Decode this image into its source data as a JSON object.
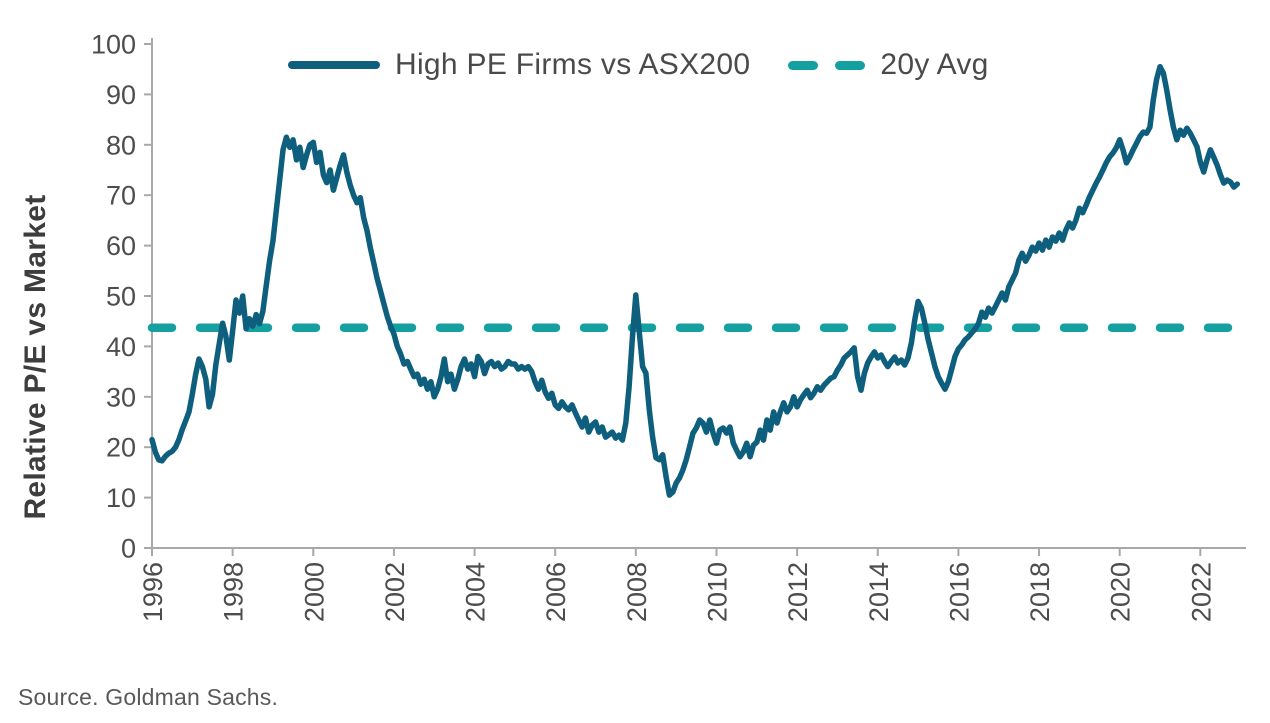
{
  "legend": {
    "series1_label": "High PE Firms vs ASX200",
    "series2_label": "20y Avg"
  },
  "y_axis": {
    "title": "Relative P/E vs Market"
  },
  "source": "Source. Goldman Sachs.",
  "colors": {
    "series_line": "#0E5F7E",
    "avg_line": "#14A0A0",
    "axis": "#A8A8A8",
    "tick_text": "#4D4D4D",
    "axis_title_text": "#3D3D3D",
    "source_text": "#595959"
  },
  "chart_data": {
    "type": "line",
    "title": "",
    "xlabel": "",
    "ylabel": "Relative P/E vs Market",
    "ylim": [
      0,
      100
    ],
    "grid": false,
    "legend_position": "top",
    "y_ticks": [
      0,
      10,
      20,
      30,
      40,
      50,
      60,
      70,
      80,
      90,
      100
    ],
    "x_tick_labels": [
      "1996",
      "1998",
      "2000",
      "2002",
      "2004",
      "2006",
      "2008",
      "2010",
      "2012",
      "2014",
      "2016",
      "2018",
      "2020",
      "2022"
    ],
    "x_start_year": 1996,
    "x_end_year": 2022,
    "series": [
      {
        "name": "High PE Firms vs ASX200",
        "frequency": "monthly",
        "start_year": 1996,
        "values": [
          21.5,
          19.0,
          17.5,
          17.3,
          18.2,
          18.8,
          19.2,
          20.0,
          21.5,
          23.5,
          25.2,
          27.0,
          30.5,
          34.5,
          37.5,
          36.0,
          33.5,
          28.0,
          30.5,
          36.3,
          40.5,
          44.6,
          42.0,
          37.3,
          43.0,
          49.2,
          46.6,
          50.0,
          43.5,
          45.5,
          44.0,
          46.3,
          44.5,
          47.0,
          52.0,
          57.0,
          61.0,
          67.0,
          73.0,
          79.0,
          81.5,
          79.5,
          81.0,
          77.0,
          79.5,
          75.5,
          78.0,
          80.0,
          80.5,
          76.5,
          78.5,
          74.0,
          72.5,
          75.0,
          71.0,
          73.5,
          76.0,
          78.0,
          74.5,
          72.0,
          70.0,
          68.5,
          69.5,
          65.5,
          63.0,
          59.5,
          56.5,
          53.5,
          51.0,
          48.5,
          46.0,
          44.0,
          42.5,
          40.0,
          38.5,
          36.5,
          37.0,
          35.5,
          34.0,
          34.5,
          32.5,
          33.5,
          31.5,
          33.0,
          30.0,
          31.5,
          34.0,
          37.5,
          33.0,
          34.5,
          31.5,
          33.5,
          36.0,
          37.5,
          35.5,
          36.5,
          34.0,
          38.0,
          37.0,
          34.6,
          36.5,
          37.0,
          36.0,
          36.7,
          35.5,
          36.0,
          37.0,
          36.5,
          36.5,
          35.5,
          36.0,
          35.5,
          36.0,
          35.0,
          33.0,
          31.5,
          33.3,
          31.0,
          29.7,
          30.7,
          28.4,
          27.7,
          29.0,
          28.0,
          27.4,
          28.4,
          26.8,
          25.4,
          24.0,
          25.8,
          23.0,
          24.4,
          25.0,
          23.0,
          24.0,
          22.0,
          22.5,
          23.0,
          21.8,
          22.4,
          21.4,
          24.8,
          32.0,
          42.0,
          50.2,
          43.0,
          36.0,
          34.7,
          27.4,
          22.0,
          17.9,
          17.5,
          18.5,
          14.1,
          10.5,
          11.1,
          12.9,
          13.9,
          15.5,
          17.5,
          20.1,
          22.8,
          23.8,
          25.4,
          24.8,
          23.0,
          25.4,
          22.8,
          20.8,
          23.4,
          23.8,
          22.8,
          24.0,
          20.8,
          19.4,
          18.1,
          19.1,
          20.8,
          18.1,
          20.4,
          21.0,
          23.4,
          21.4,
          25.4,
          23.4,
          27.0,
          24.8,
          27.0,
          28.8,
          27.0,
          28.0,
          30.0,
          28.0,
          29.4,
          30.4,
          31.3,
          29.8,
          30.7,
          32.0,
          31.3,
          32.3,
          33.0,
          33.7,
          34.0,
          35.3,
          36.3,
          37.7,
          38.3,
          38.9,
          39.7,
          34.0,
          31.3,
          34.6,
          36.7,
          37.9,
          38.9,
          37.7,
          38.3,
          37.0,
          36.0,
          37.0,
          37.9,
          36.7,
          37.3,
          36.3,
          37.7,
          40.7,
          45.2,
          48.9,
          47.6,
          44.6,
          41.3,
          38.7,
          36.0,
          34.0,
          32.7,
          31.5,
          33.0,
          35.5,
          38.0,
          39.5,
          40.3,
          41.3,
          41.9,
          42.7,
          43.5,
          44.6,
          46.8,
          45.8,
          47.6,
          46.6,
          47.9,
          49.2,
          50.6,
          49.2,
          51.8,
          53.2,
          54.5,
          57.1,
          58.5,
          56.9,
          58.1,
          59.7,
          58.9,
          60.5,
          59.1,
          61.1,
          59.7,
          61.7,
          60.9,
          62.5,
          61.1,
          63.1,
          64.5,
          63.5,
          65.1,
          67.4,
          66.5,
          68.0,
          69.6,
          71.0,
          72.4,
          73.6,
          75.0,
          76.4,
          77.6,
          78.4,
          79.4,
          81.0,
          79.0,
          76.4,
          77.6,
          79.0,
          80.3,
          81.6,
          82.5,
          82.3,
          83.5,
          88.9,
          93.0,
          95.5,
          94.2,
          90.9,
          86.9,
          83.5,
          81.0,
          82.9,
          81.9,
          83.3,
          82.3,
          81.0,
          79.6,
          76.6,
          74.6,
          77.0,
          79.0,
          77.5,
          76.0,
          74.0,
          72.4,
          73.0,
          72.6,
          71.6,
          72.2
        ]
      },
      {
        "name": "20y Avg",
        "style": "dashed",
        "value": 43.7
      }
    ]
  }
}
